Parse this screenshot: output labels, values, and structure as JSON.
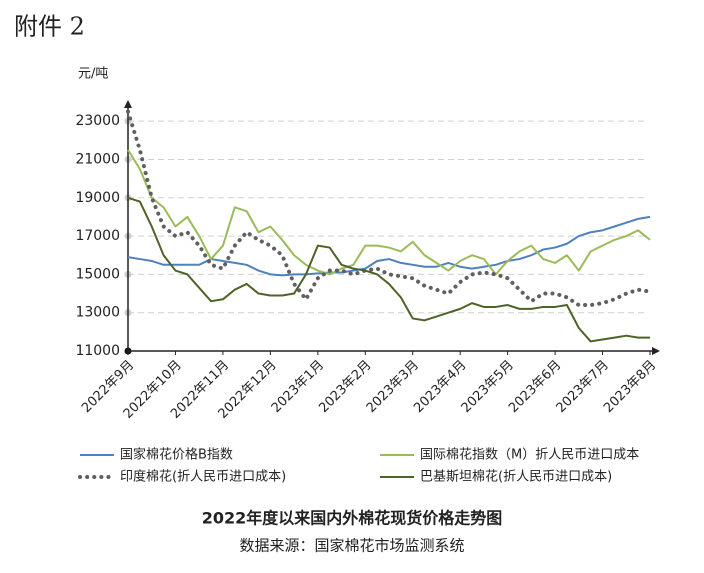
{
  "page_label": "附件 2",
  "chart_data": {
    "type": "line",
    "title": "2022年度以来国内外棉花现货价格走势图",
    "source": "数据来源：国家棉花市场监测系统",
    "y_axis_label": "元/吨",
    "categories": [
      "2022年9月",
      null,
      null,
      null,
      "2022年10月",
      null,
      null,
      null,
      "2022年11月",
      null,
      null,
      null,
      "2022年12月",
      null,
      null,
      null,
      "2023年1月",
      null,
      null,
      null,
      "2023年2月",
      null,
      null,
      null,
      "2023年3月",
      null,
      null,
      null,
      "2023年4月",
      null,
      null,
      null,
      "2023年5月",
      null,
      null,
      null,
      "2023年6月",
      null,
      null,
      null,
      "2023年7月",
      null,
      null,
      null,
      "2023年8月"
    ],
    "series": [
      {
        "name": "国家棉花价格B指数",
        "color": "#4f81bd",
        "style": "solid",
        "values": [
          15900,
          15800,
          15700,
          15500,
          15500,
          15500,
          15500,
          15800,
          15700,
          15600,
          15500,
          15200,
          15000,
          14950,
          15000,
          15000,
          15050,
          15100,
          15100,
          15200,
          15300,
          15700,
          15800,
          15600,
          15500,
          15400,
          15400,
          15600,
          15400,
          15300,
          15400,
          15500,
          15700,
          15800,
          16000,
          16300,
          16400,
          16600,
          17000,
          17200,
          17300,
          17500,
          17700,
          17900,
          18000
        ]
      },
      {
        "name": "国际棉花指数（M）折人民币进口成本",
        "color": "#9bbb59",
        "style": "solid",
        "values": [
          21500,
          20500,
          19000,
          18500,
          17500,
          18000,
          17000,
          15800,
          16500,
          18500,
          18300,
          17200,
          17500,
          16800,
          16000,
          15500,
          15200,
          15000,
          15300,
          15500,
          16500,
          16500,
          16400,
          16200,
          16700,
          16000,
          15600,
          15200,
          15700,
          16000,
          15800,
          15000,
          15700,
          16200,
          16500,
          15800,
          15600,
          16000,
          15200,
          16200,
          16500,
          16800,
          17000,
          17300,
          16800
        ]
      },
      {
        "name": "印度棉花(折人民币进口成本)",
        "color": "#606060",
        "style": "dotted",
        "values": [
          23500,
          21500,
          19000,
          17500,
          17000,
          17200,
          16500,
          15500,
          15300,
          16500,
          17200,
          16800,
          16500,
          16000,
          14500,
          13700,
          14800,
          15200,
          15200,
          15000,
          15200,
          15300,
          15000,
          14900,
          14800,
          14400,
          14200,
          14000,
          14600,
          15000,
          15100,
          15000,
          14800,
          14200,
          13600,
          14000,
          14000,
          13800,
          13400,
          13400,
          13500,
          13700,
          14000,
          14200,
          14100
        ]
      },
      {
        "name": "巴基斯坦棉花(折人民币进口成本)",
        "color": "#4f6228",
        "style": "solid",
        "values": [
          19000,
          18800,
          17500,
          16000,
          15200,
          15000,
          14300,
          13600,
          13700,
          14200,
          14500,
          14000,
          13900,
          13900,
          14000,
          15000,
          16500,
          16400,
          15500,
          15300,
          15200,
          15000,
          14500,
          13800,
          12700,
          12600,
          12800,
          13000,
          13200,
          13500,
          13300,
          13300,
          13400,
          13200,
          13200,
          13300,
          13300,
          13400,
          12200,
          11500,
          11600,
          11700,
          11800,
          11700,
          11700
        ]
      }
    ],
    "ylim": [
      11000,
      24000
    ],
    "yticks": [
      11000,
      13000,
      15000,
      17000,
      19000,
      21000,
      23000
    ],
    "grid": true,
    "legend": "bottom"
  }
}
